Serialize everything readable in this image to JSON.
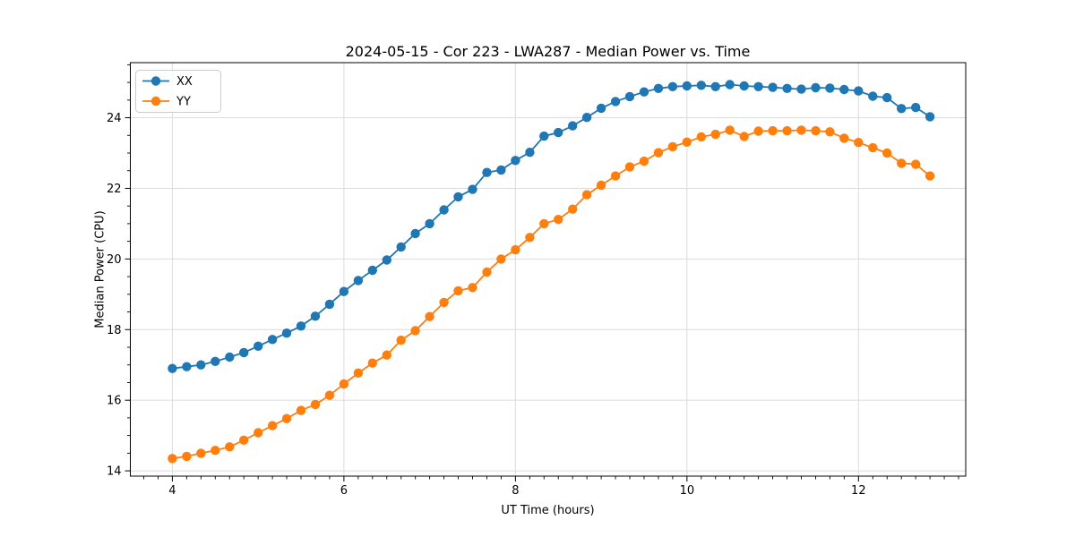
{
  "chart_data": {
    "type": "line",
    "title": "2024-05-15 - Cor 223 - LWA287 - Median Power vs. Time",
    "xlabel": "UT Time (hours)",
    "ylabel": "Median Power (CPU)",
    "xlim": [
      3.51,
      13.25
    ],
    "ylim": [
      13.85,
      25.56
    ],
    "x_major_ticks": [
      4,
      6,
      8,
      10,
      12
    ],
    "y_major_ticks": [
      14,
      16,
      18,
      20,
      22,
      24
    ],
    "x_minor_step": 0.166667,
    "y_minor_step": 0.5,
    "grid": true,
    "legend_position": "upper left",
    "x": [
      4.0,
      4.167,
      4.333,
      4.5,
      4.667,
      4.833,
      5.0,
      5.167,
      5.333,
      5.5,
      5.667,
      5.833,
      6.0,
      6.167,
      6.333,
      6.5,
      6.667,
      6.833,
      7.0,
      7.167,
      7.333,
      7.5,
      7.667,
      7.833,
      8.0,
      8.167,
      8.333,
      8.5,
      8.667,
      8.833,
      9.0,
      9.167,
      9.333,
      9.5,
      9.667,
      9.833,
      10.0,
      10.167,
      10.333,
      10.5,
      10.667,
      10.833,
      11.0,
      11.167,
      11.333,
      11.5,
      11.667,
      11.833,
      12.0,
      12.167,
      12.333,
      12.5,
      12.667,
      12.833
    ],
    "series": [
      {
        "name": "XX",
        "color": "#1f77b4",
        "values": [
          16.9,
          16.95,
          17.0,
          17.1,
          17.22,
          17.35,
          17.53,
          17.72,
          17.9,
          18.1,
          18.38,
          18.72,
          19.08,
          19.39,
          19.68,
          19.97,
          20.34,
          20.72,
          21.0,
          21.39,
          21.76,
          21.97,
          22.45,
          22.52,
          22.79,
          23.02,
          23.48,
          23.58,
          23.77,
          24.01,
          24.27,
          24.46,
          24.6,
          24.73,
          24.83,
          24.88,
          24.9,
          24.92,
          24.88,
          24.94,
          24.9,
          24.88,
          24.86,
          24.83,
          24.81,
          24.85,
          24.84,
          24.8,
          24.76,
          24.61,
          24.57,
          24.26,
          24.29,
          24.03
        ]
      },
      {
        "name": "YY",
        "color": "#ff7f0e",
        "values": [
          14.35,
          14.41,
          14.5,
          14.58,
          14.68,
          14.87,
          15.08,
          15.28,
          15.48,
          15.71,
          15.88,
          16.14,
          16.46,
          16.77,
          17.05,
          17.28,
          17.7,
          17.97,
          18.37,
          18.77,
          19.1,
          19.19,
          19.63,
          20.0,
          20.26,
          20.61,
          21.0,
          21.12,
          21.41,
          21.82,
          22.09,
          22.35,
          22.61,
          22.77,
          23.01,
          23.18,
          23.31,
          23.46,
          23.53,
          23.65,
          23.47,
          23.62,
          23.63,
          23.63,
          23.65,
          23.63,
          23.6,
          23.42,
          23.3,
          23.15,
          23.0,
          22.71,
          22.68,
          22.35
        ]
      }
    ]
  },
  "styles": {
    "background": "#ffffff",
    "grid_color": "#dcdcdc",
    "spine_color": "#000000",
    "tick_color": "#000000",
    "text_color": "#000000",
    "legend_border": "#cccccc",
    "legend_fill": "rgba(255,255,255,0.85)"
  }
}
